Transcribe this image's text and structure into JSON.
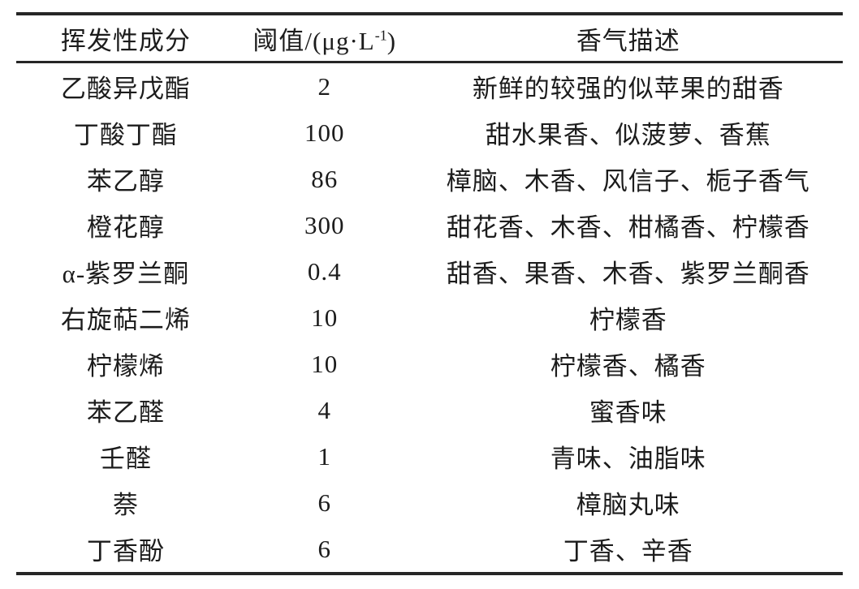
{
  "page": {
    "background": "#ffffff",
    "text_color": "#1c1c1c",
    "rule_color": "#262626"
  },
  "table": {
    "header": {
      "component": "挥发性成分",
      "threshold_prefix": "阈值/(μg·L",
      "threshold_sup": "-1",
      "threshold_suffix": ")",
      "aroma": "香气描述"
    },
    "rows": [
      {
        "component": "乙酸异戊酯",
        "threshold": "2",
        "aroma": "新鲜的较强的似苹果的甜香"
      },
      {
        "component": "丁酸丁酯",
        "threshold": "100",
        "aroma": "甜水果香、似菠萝、香蕉"
      },
      {
        "component": "苯乙醇",
        "threshold": "86",
        "aroma": "樟脑、木香、风信子、栀子香气"
      },
      {
        "component": "橙花醇",
        "threshold": "300",
        "aroma": "甜花香、木香、柑橘香、柠檬香"
      },
      {
        "component": "α-紫罗兰酮",
        "threshold": "0.4",
        "aroma": "甜香、果香、木香、紫罗兰酮香"
      },
      {
        "component": "右旋萜二烯",
        "threshold": "10",
        "aroma": "柠檬香"
      },
      {
        "component": "柠檬烯",
        "threshold": "10",
        "aroma": "柠檬香、橘香"
      },
      {
        "component": "苯乙醛",
        "threshold": "4",
        "aroma": "蜜香味"
      },
      {
        "component": "壬醛",
        "threshold": "1",
        "aroma": "青味、油脂味"
      },
      {
        "component": "萘",
        "threshold": "6",
        "aroma": "樟脑丸味"
      },
      {
        "component": "丁香酚",
        "threshold": "6",
        "aroma": "丁香、辛香"
      }
    ]
  }
}
